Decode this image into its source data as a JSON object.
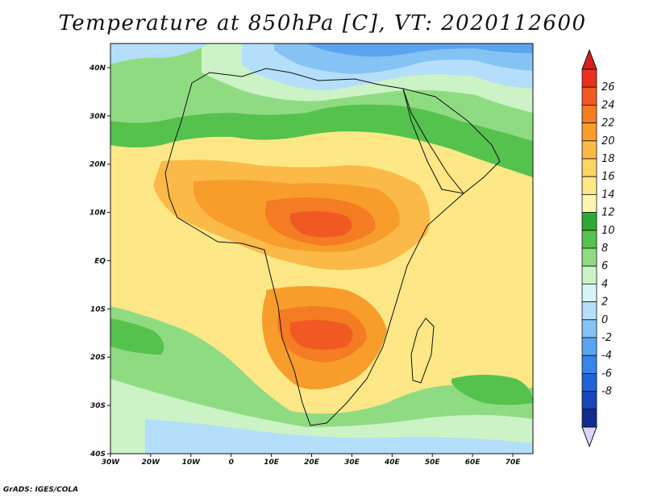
{
  "title": "Temperature at 850hPa [C], VT: 2020112600",
  "credit": "GrADS: IGES/COLA",
  "map": {
    "lon_range": [
      -30,
      75
    ],
    "lat_range": [
      -40,
      45
    ],
    "lat_ticks": [
      {
        "value": 40,
        "label": "40N"
      },
      {
        "value": 30,
        "label": "30N"
      },
      {
        "value": 20,
        "label": "20N"
      },
      {
        "value": 10,
        "label": "10N"
      },
      {
        "value": 0,
        "label": "EQ"
      },
      {
        "value": -10,
        "label": "10S"
      },
      {
        "value": -20,
        "label": "20S"
      },
      {
        "value": -30,
        "label": "30S"
      },
      {
        "value": -40,
        "label": "40S"
      }
    ],
    "lon_ticks": [
      {
        "value": -30,
        "label": "30W"
      },
      {
        "value": -20,
        "label": "20W"
      },
      {
        "value": -10,
        "label": "10W"
      },
      {
        "value": 0,
        "label": "0"
      },
      {
        "value": 10,
        "label": "10E"
      },
      {
        "value": 20,
        "label": "20E"
      },
      {
        "value": 30,
        "label": "30E"
      },
      {
        "value": 40,
        "label": "40E"
      },
      {
        "value": 50,
        "label": "50E"
      },
      {
        "value": 60,
        "label": "60E"
      },
      {
        "value": 70,
        "label": "70E"
      }
    ]
  },
  "colorbar": {
    "labels": [
      "26",
      "24",
      "22",
      "20",
      "18",
      "16",
      "14",
      "12",
      "10",
      "8",
      "6",
      "4",
      "2",
      "0",
      "-2",
      "-4",
      "-6",
      "-8"
    ],
    "colors": [
      "#e8311c",
      "#f05a22",
      "#f47c22",
      "#f89d2c",
      "#fbba48",
      "#fcd463",
      "#fde787",
      "#fdf5b0",
      "#2fa836",
      "#55c24d",
      "#8fdb82",
      "#cbf3c6",
      "#d9f4f7",
      "#b4defa",
      "#86c3f5",
      "#5aa5ef",
      "#3785e6",
      "#1e64d6",
      "#1846b8",
      "#102c8e"
    ],
    "top_arrow_color": "#d81c1c",
    "bottom_arrow_color": "#d8d6fb"
  }
}
